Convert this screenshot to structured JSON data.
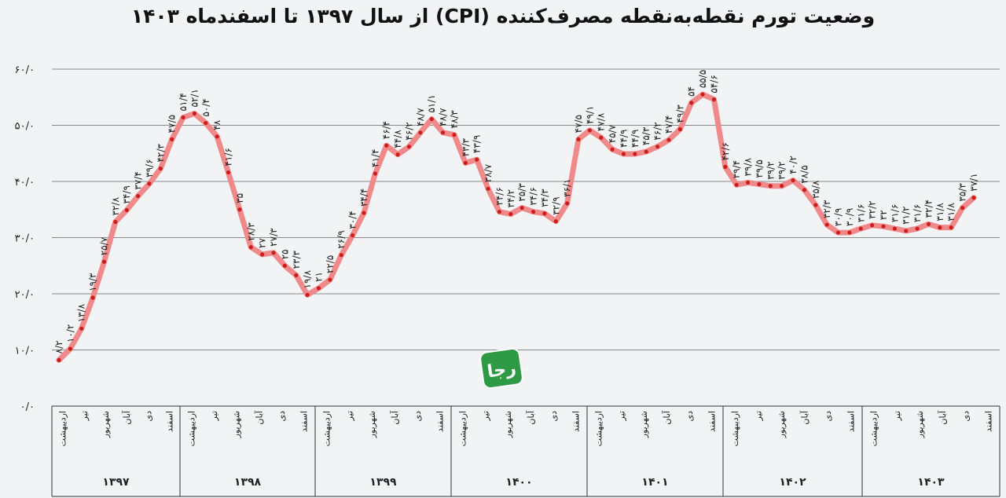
{
  "chart_data": {
    "type": "line",
    "title": "وضعیت تورم نقطه‌به‌نقطه مصرف‌کننده (CPI) از سال ۱۳۹۷ تا اسفندماه ۱۴۰۳",
    "ylim": [
      0,
      60
    ],
    "yticks": [
      "۰/۰",
      "۱۰/۰",
      "۲۰/۰",
      "۳۰/۰",
      "۴۰/۰",
      "۵۰/۰",
      "۶۰/۰"
    ],
    "ytick_values": [
      0,
      10,
      20,
      30,
      40,
      50,
      60
    ],
    "grid": true,
    "line_color": "#f08a8a",
    "point_color": "#cc1d1d",
    "years": [
      "۱۳۹۷",
      "۱۳۹۸",
      "۱۳۹۹",
      "۱۴۰۰",
      "۱۴۰۱",
      "۱۴۰۲",
      "۱۴۰۳"
    ],
    "month_labels": [
      "اردیبهشت",
      "تیر",
      "شهریور",
      "آبان",
      "دی",
      "اسفند"
    ],
    "series": [
      {
        "values": [
          8.2,
          10.2,
          13.8,
          19.3,
          25.7,
          32.8,
          34.9,
          37.4,
          39.6,
          42.3,
          47.5,
          51.4,
          52.1,
          50.4,
          48,
          41.6,
          35,
          28.3,
          27,
          27.3,
          25,
          23.3,
          19.8,
          21,
          22.5,
          26.9,
          30.4,
          34.4,
          41.4,
          46.4,
          44.8,
          46.2,
          48.7,
          51.1,
          48.7,
          48.3,
          43.3,
          43.9,
          38.7,
          34.6,
          34.2,
          35.3,
          34.6,
          34.3,
          32.9,
          36.1,
          47.5,
          49.1,
          47.8,
          45.7,
          44.9,
          44.9,
          45.3,
          46.2,
          47.4,
          49.3,
          54,
          55.5,
          54.6,
          42.6,
          39.4,
          39.8,
          39.5,
          39.2,
          39.2,
          40.2,
          38.5,
          35.8,
          32.3,
          30.9,
          30.9,
          31.6,
          32.2,
          32,
          31.6,
          31.2,
          31.6,
          32.4,
          31.8,
          31.8,
          35.3,
          37.1
        ]
      }
    ],
    "value_labels": [
      "۸/۲",
      "۱۰/۲",
      "۱۳/۸",
      "۱۹/۳",
      "۲۵/۷",
      "۳۲/۸",
      "۳۴/۹",
      "۳۷/۴",
      "۳۹/۶",
      "۴۲/۳",
      "۴۷/۵",
      "۵۱/۴",
      "۵۲/۱",
      "۵۰/۴",
      "۴۸",
      "۴۱/۶",
      "۳۵",
      "۲۸/۳",
      "۲۷",
      "۲۷/۳",
      "۲۵",
      "۲۳/۳",
      "۱۹/۸",
      "۲۱",
      "۲۲/۵",
      "۲۶/۹",
      "۳۰/۴",
      "۳۴/۴",
      "۴۱/۴",
      "۴۶/۴",
      "۴۴/۸",
      "۴۶/۲",
      "۴۸/۷",
      "۵۱/۱",
      "۴۸/۷",
      "۴۸/۳",
      "۴۳/۳",
      "۴۳/۹",
      "۳۸/۷",
      "۳۴/۶",
      "۳۴/۲",
      "۳۵/۳",
      "۳۴/۶",
      "۳۴/۳",
      "۳۲/۹",
      "۳۶/۱",
      "۴۷/۵",
      "۴۹/۱",
      "۴۷/۸",
      "۴۵/۷",
      "۴۴/۹",
      "۴۴/۹",
      "۴۵/۳",
      "۴۶/۲",
      "۴۷/۴",
      "۴۹/۳",
      "۵۴",
      "۵۵/۵",
      "۵۴/۶",
      "۴۲/۶",
      "۳۹/۴",
      "۳۹/۸",
      "۳۹/۵",
      "۳۹/۲",
      "۳۹/۲",
      "۴۰/۲",
      "۳۸/۵",
      "۳۵/۸",
      "۳۲/۳",
      "۳۰/۹",
      "۳۰/۹",
      "۳۱/۶",
      "۳۲/۲",
      "۳۲",
      "۳۱/۶",
      "۳۱/۲",
      "۳۱/۶",
      "۳۲/۴",
      "۳۱/۸",
      "۳۱/۸",
      "۳۵/۳",
      "۳۷/۱"
    ]
  },
  "logo": {
    "text": "رجا",
    "color": "#2e9a45"
  }
}
